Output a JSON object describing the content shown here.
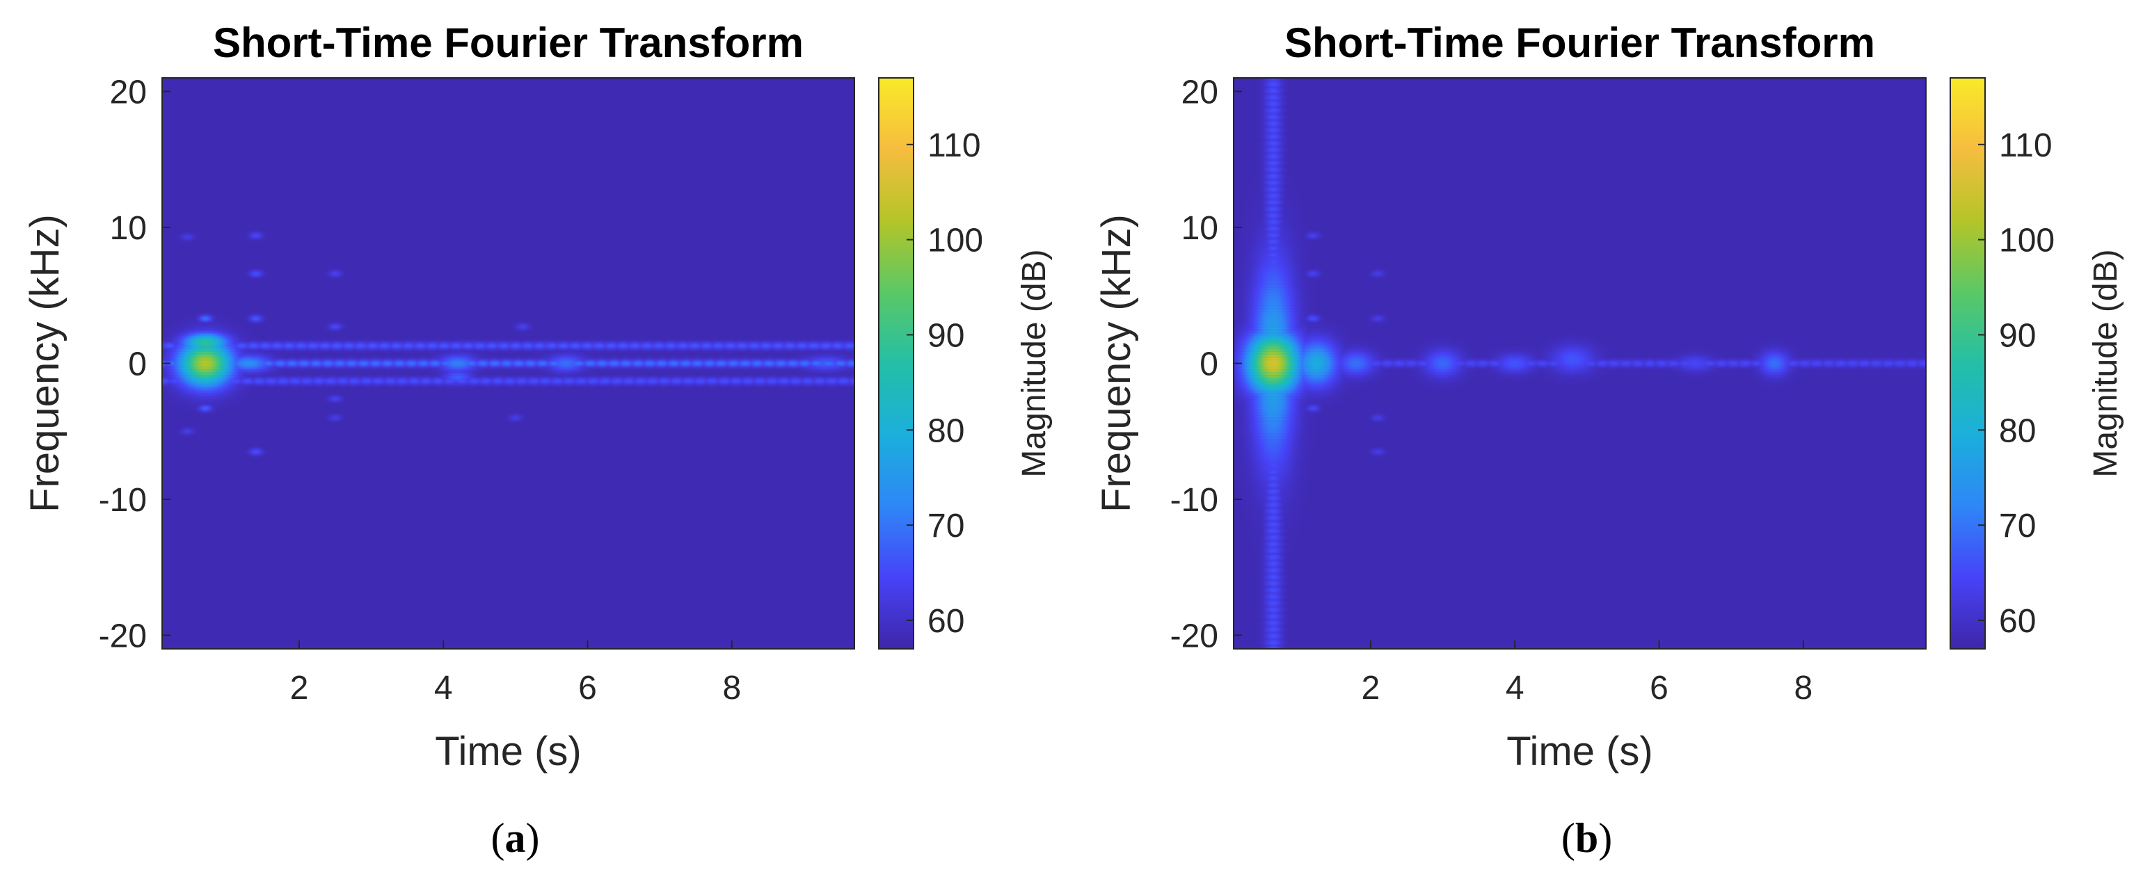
{
  "colormap": {
    "name": "parula",
    "stops": [
      "#3e26a8",
      "#4743f8",
      "#2e87f7",
      "#1bafdc",
      "#24bfa6",
      "#5bc865",
      "#b4c528",
      "#f6bd3f",
      "#f9e928"
    ]
  },
  "chart_data": [
    {
      "type": "heatmap",
      "panel_label": "a",
      "title": "Short-Time Fourier Transform",
      "xlabel": "Time (s)",
      "ylabel": "Frequency (kHz)",
      "colorbar_label": "Magnitude (dB)",
      "xlim": [
        0.1,
        9.7
      ],
      "ylim": [
        -21,
        21
      ],
      "xticks": [
        "2",
        "4",
        "6",
        "8"
      ],
      "yticks": [
        "-20",
        "-10",
        "0",
        "10",
        "20"
      ],
      "clim": [
        57,
        117
      ],
      "colorbar_ticks": [
        "60",
        "70",
        "80",
        "90",
        "100",
        "110"
      ],
      "background_db": 58,
      "features": [
        {
          "t": 0.7,
          "f": 0,
          "dt": 0.35,
          "df": 1.6,
          "db": 104
        },
        {
          "t": 0.7,
          "f": 1.5,
          "dt": 0.3,
          "df": 0.7,
          "db": 90
        },
        {
          "t": 0.7,
          "f": -1.2,
          "dt": 0.3,
          "df": 0.6,
          "db": 82
        },
        {
          "t": 1.3,
          "f": 0,
          "dt": 0.3,
          "df": 0.6,
          "db": 74
        },
        {
          "t": 4.2,
          "f": 0,
          "dt": 0.25,
          "df": 0.6,
          "db": 72
        },
        {
          "t": 4.2,
          "f": -1,
          "dt": 0.2,
          "df": 0.5,
          "db": 68
        },
        {
          "t": 5.7,
          "f": 0,
          "dt": 0.25,
          "df": 0.6,
          "db": 70
        },
        {
          "t": 9.3,
          "f": 0,
          "dt": 0.3,
          "df": 0.5,
          "db": 68
        }
      ],
      "bands": [
        {
          "f": 0,
          "db": 70
        },
        {
          "f": 1.3,
          "db": 67
        },
        {
          "f": -1.3,
          "db": 66
        }
      ],
      "spots": [
        {
          "t": 0.7,
          "f": 3.3,
          "db": 70
        },
        {
          "t": 0.7,
          "f": -3.3,
          "db": 68
        },
        {
          "t": 1.4,
          "f": 9.4,
          "db": 65
        },
        {
          "t": 1.4,
          "f": 6.6,
          "db": 66
        },
        {
          "t": 1.4,
          "f": 3.3,
          "db": 67
        },
        {
          "t": 1.4,
          "f": -6.5,
          "db": 66
        },
        {
          "t": 2.5,
          "f": 6.6,
          "db": 64
        },
        {
          "t": 2.5,
          "f": 2.7,
          "db": 65
        },
        {
          "t": 2.5,
          "f": -2.6,
          "db": 64
        },
        {
          "t": 2.5,
          "f": -4.0,
          "db": 63
        },
        {
          "t": 5.1,
          "f": 2.7,
          "db": 64
        },
        {
          "t": 5.0,
          "f": -4.0,
          "db": 63
        },
        {
          "t": 0.45,
          "f": 9.3,
          "db": 63
        },
        {
          "t": 0.45,
          "f": -5.0,
          "db": 63
        }
      ],
      "columns": [],
      "caption": "(a)"
    },
    {
      "type": "heatmap",
      "panel_label": "b",
      "title": "Short-Time Fourier Transform",
      "xlabel": "Time (s)",
      "ylabel": "Frequency (kHz)",
      "colorbar_label": "Magnitude (dB)",
      "xlim": [
        0.1,
        9.7
      ],
      "ylim": [
        -21,
        21
      ],
      "xticks": [
        "2",
        "4",
        "6",
        "8"
      ],
      "yticks": [
        "-20",
        "-10",
        "0",
        "10",
        "20"
      ],
      "clim": [
        57,
        117
      ],
      "colorbar_ticks": [
        "60",
        "70",
        "80",
        "90",
        "100",
        "110"
      ],
      "background_db": 58,
      "features": [
        {
          "t": 0.65,
          "f": 0,
          "dt": 0.35,
          "df": 2.2,
          "db": 108
        },
        {
          "t": 0.65,
          "f": 0,
          "dt": 0.28,
          "df": 7.0,
          "db": 80
        },
        {
          "t": 1.25,
          "f": 0,
          "dt": 0.28,
          "df": 1.6,
          "db": 80
        },
        {
          "t": 1.8,
          "f": 0,
          "dt": 0.25,
          "df": 0.9,
          "db": 70
        },
        {
          "t": 3.0,
          "f": 0,
          "dt": 0.25,
          "df": 1.0,
          "db": 69
        },
        {
          "t": 4.0,
          "f": 0,
          "dt": 0.25,
          "df": 0.7,
          "db": 67
        },
        {
          "t": 4.8,
          "f": 0.3,
          "dt": 0.3,
          "df": 1.0,
          "db": 67
        },
        {
          "t": 6.5,
          "f": 0,
          "dt": 0.25,
          "df": 0.6,
          "db": 65
        },
        {
          "t": 7.6,
          "f": 0,
          "dt": 0.2,
          "df": 0.9,
          "db": 70
        }
      ],
      "bands": [
        {
          "f": 0,
          "db": 65
        }
      ],
      "spots": [
        {
          "t": 1.2,
          "f": 9.4,
          "db": 64
        },
        {
          "t": 1.2,
          "f": 6.6,
          "db": 64
        },
        {
          "t": 1.2,
          "f": 3.3,
          "db": 66
        },
        {
          "t": 1.2,
          "f": -3.3,
          "db": 65
        },
        {
          "t": 2.1,
          "f": 6.6,
          "db": 63
        },
        {
          "t": 2.1,
          "f": 3.3,
          "db": 63
        },
        {
          "t": 2.1,
          "f": -4.0,
          "db": 63
        },
        {
          "t": 2.1,
          "f": -6.5,
          "db": 63
        }
      ],
      "columns": [
        {
          "t": 0.65,
          "dt": 0.12,
          "db": 66
        }
      ],
      "caption": "(b)"
    }
  ]
}
